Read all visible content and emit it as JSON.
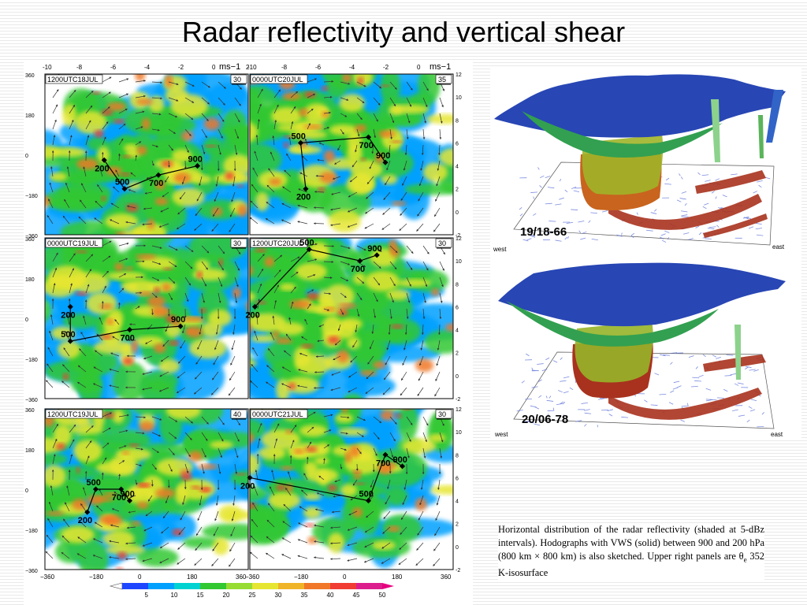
{
  "title": "Radar reflectivity and vertical shear",
  "panels": [
    {
      "id": "p1",
      "label": "1200UTC18JUL",
      "scale": "30",
      "hodo": [
        {
          "p": "200",
          "x": -6.5,
          "y": 4.5
        },
        {
          "p": "500",
          "x": -5.3,
          "y": 2
        },
        {
          "p": "700",
          "x": -3.3,
          "y": 3.2
        },
        {
          "p": "900",
          "x": -1,
          "y": 4
        }
      ]
    },
    {
      "id": "p2",
      "label": "0000UTC20JUL",
      "scale": "35",
      "hodo": [
        {
          "p": "200",
          "x": -6.7,
          "y": 2
        },
        {
          "p": "500",
          "x": -7,
          "y": 6
        },
        {
          "p": "700",
          "x": -3,
          "y": 6.5
        },
        {
          "p": "900",
          "x": -2,
          "y": 4.3
        }
      ]
    },
    {
      "id": "p3",
      "label": "0000UTC19JUL",
      "scale": "30",
      "hodo": [
        {
          "p": "200",
          "x": -8.5,
          "y": 6
        },
        {
          "p": "500",
          "x": -8.5,
          "y": 3
        },
        {
          "p": "700",
          "x": -5,
          "y": 4
        },
        {
          "p": "900",
          "x": -2,
          "y": 4.3
        }
      ]
    },
    {
      "id": "p4",
      "label": "1200UTC20JUL",
      "scale": "30",
      "hodo": [
        {
          "p": "200",
          "x": -9.7,
          "y": 6
        },
        {
          "p": "500",
          "x": -6.5,
          "y": 11
        },
        {
          "p": "700",
          "x": -3.5,
          "y": 10
        },
        {
          "p": "900",
          "x": -2.5,
          "y": 10.5
        }
      ]
    },
    {
      "id": "p5",
      "label": "1200UTC19JUL",
      "scale": "40",
      "hodo": [
        {
          "p": "200",
          "x": -7.5,
          "y": 3
        },
        {
          "p": "500",
          "x": -7,
          "y": 5
        },
        {
          "p": "700",
          "x": -5.5,
          "y": 5
        },
        {
          "p": "900",
          "x": -5,
          "y": 4
        }
      ]
    },
    {
      "id": "p6",
      "label": "0000UTC21JUL",
      "scale": "30",
      "hodo": [
        {
          "p": "200",
          "x": -10,
          "y": 6
        },
        {
          "p": "500",
          "x": -3,
          "y": 4
        },
        {
          "p": "700",
          "x": -2,
          "y": 8
        },
        {
          "p": "900",
          "x": -1,
          "y": 7
        }
      ]
    }
  ],
  "axes": {
    "top_ticks": [
      "-10",
      "-8",
      "-6",
      "-4",
      "-2",
      "0",
      "2"
    ],
    "top_unit": "ms",
    "top_unit_exp": "−1",
    "top_ticks_right": [
      "-10",
      "-8",
      "-6",
      "-4",
      "-2",
      "0"
    ],
    "right_ticks": [
      "12",
      "10",
      "8",
      "6",
      "4",
      "2",
      "0",
      "-2"
    ],
    "left_ticks": [
      "360",
      "180",
      "0",
      "−180",
      "−360"
    ],
    "bottom_ticks": [
      "−360",
      "−180",
      "0",
      "180",
      "360"
    ]
  },
  "colorbar": {
    "labels": [
      "5",
      "10",
      "15",
      "20",
      "25",
      "30",
      "35",
      "40",
      "45",
      "50"
    ],
    "colors": [
      "#1e46ff",
      "#00a0ff",
      "#00d2d2",
      "#32c832",
      "#96dc32",
      "#e6e632",
      "#f0b428",
      "#f07828",
      "#f03c32",
      "#dc1e8c"
    ]
  },
  "views": [
    {
      "label": "19/18-66",
      "west": "west",
      "east": "east"
    },
    {
      "label": "20/06-78",
      "west": "west",
      "east": "east"
    }
  ],
  "caption": {
    "text1": "Horizontal distribution of the radar reflectivity (shaded at 5-dBz intervals). Hodographs with VWS (solid) between 900 and 200 hPa (800 km × 800 km) is also sketched. Upper right panels are ",
    "theta": "θ",
    "theta_sub": "e",
    "text2": " 352 K-isosurface"
  }
}
